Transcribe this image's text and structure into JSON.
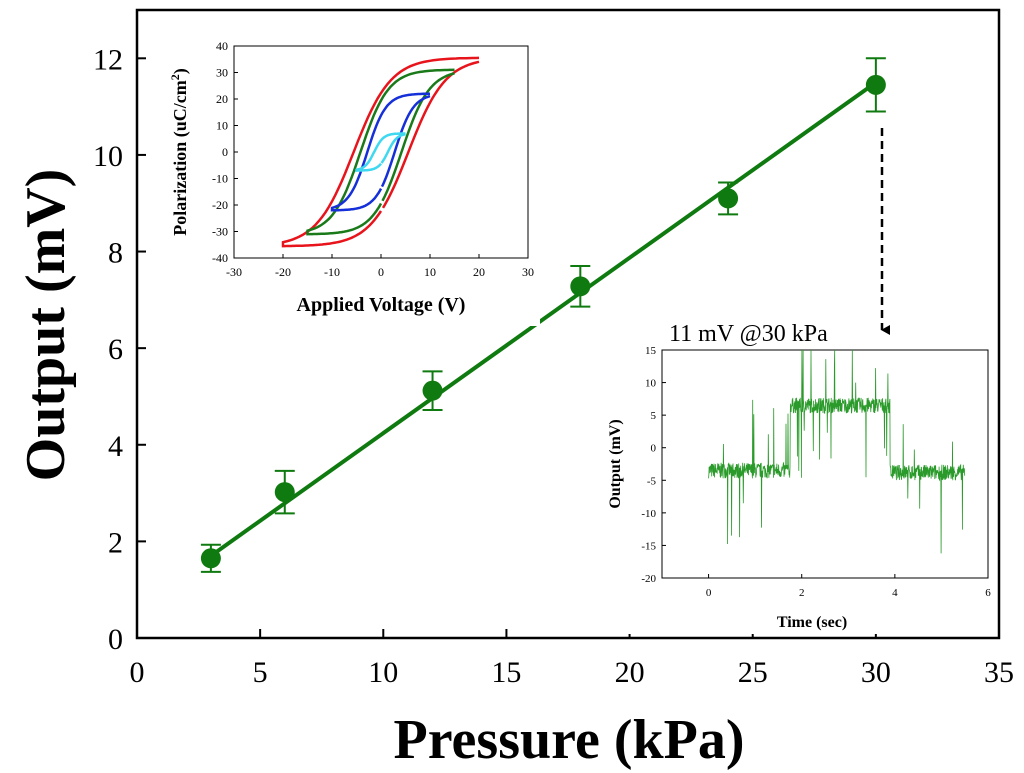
{
  "chart_data": [
    {
      "id": "main",
      "type": "scatter",
      "title": "",
      "xlabel": "Pressure (kPa)",
      "ylabel": "Output (mV)",
      "xlim": [
        0,
        35
      ],
      "ylim": [
        0,
        13
      ],
      "xticks": [
        0,
        5,
        10,
        15,
        20,
        25,
        30,
        35
      ],
      "yticks": [
        0,
        2,
        4,
        6,
        8,
        10,
        12
      ],
      "grid": false,
      "series": [
        {
          "name": "Measured output",
          "color": "#0f7a0f",
          "x": [
            3,
            6,
            12,
            18,
            24,
            30
          ],
          "y": [
            1.65,
            3.02,
            5.12,
            7.28,
            9.1,
            11.45
          ],
          "err": [
            0.28,
            0.44,
            0.4,
            0.42,
            0.33,
            0.55
          ]
        },
        {
          "name": "Linear fit",
          "color": "#0f7a0f",
          "x": [
            3,
            30
          ],
          "y": [
            1.7,
            11.5
          ]
        }
      ],
      "annotations": [
        {
          "text": "11 mV @30 kPa",
          "points_to": {
            "x": 30,
            "y": 11.45
          }
        }
      ]
    },
    {
      "id": "hysteresis",
      "type": "line",
      "title": "",
      "xlabel": "Applied Voltage (V)",
      "ylabel": "Polarization (uC/cm2)",
      "xlim": [
        -30,
        30
      ],
      "ylim": [
        -40,
        40
      ],
      "xticks": [
        -30,
        -20,
        -10,
        0,
        10,
        20,
        30
      ],
      "yticks": [
        -40,
        -30,
        -20,
        -10,
        0,
        10,
        20,
        30,
        40
      ],
      "series": [
        {
          "name": "20 V loop",
          "color": "#e8141c",
          "vmax": 20,
          "pmax": 35.5
        },
        {
          "name": "15 V loop",
          "color": "#1a7a1a",
          "vmax": 15,
          "pmax": 31
        },
        {
          "name": "10 V loop",
          "color": "#1530d8",
          "vmax": 10,
          "pmax": 22
        },
        {
          "name": "5 V loop",
          "color": "#3ed8f0",
          "vmax": 5,
          "pmax": 7
        }
      ]
    },
    {
      "id": "timetrace",
      "type": "line",
      "title": "",
      "xlabel": "Time (sec)",
      "ylabel": "Output (mV)",
      "xlim": [
        -1,
        6
      ],
      "ylim": [
        -20,
        15
      ],
      "xticks": [
        0,
        2,
        4,
        6
      ],
      "yticks": [
        -20,
        -15,
        -10,
        -5,
        0,
        5,
        10,
        15
      ],
      "series": [
        {
          "name": "Output signal",
          "color": "#2a9a2a",
          "t_start": 0,
          "t_end": 5.5,
          "segments": [
            {
              "from": 0,
              "to": 1.75,
              "level": -3.5
            },
            {
              "from": 1.75,
              "to": 3.9,
              "level": 6.5
            },
            {
              "from": 3.9,
              "to": 5.5,
              "level": -3.8
            }
          ]
        }
      ]
    }
  ]
}
